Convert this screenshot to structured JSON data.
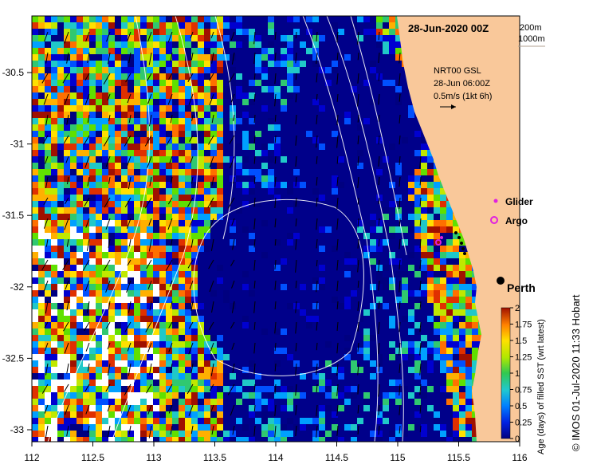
{
  "title": "28-Jun-2020 00Z",
  "depth_labels": [
    "200m",
    "1000m"
  ],
  "current_info": {
    "line1": "NRT00 GSL",
    "line2": "28-Jun 06:00Z",
    "line3": "0.5m/s (1kt 6h)"
  },
  "legend": {
    "glider": "Glider",
    "argo": "Argo"
  },
  "city": "Perth",
  "colorbar": {
    "label": "Age (days) of filled SST (wrt latest)",
    "ticks": [
      "2",
      "1.75",
      "1.5",
      "1.25",
      "1",
      "0.75",
      "0.5",
      "0.25",
      "0"
    ],
    "colors": [
      "#000080",
      "#0000d0",
      "#0050ff",
      "#00a0ff",
      "#20c8c8",
      "#30c870",
      "#60e000",
      "#c0e800",
      "#ffe000",
      "#ffb000",
      "#ff7000",
      "#e03000",
      "#a01000"
    ]
  },
  "x_axis": {
    "ticks": [
      "112",
      "112.5",
      "113",
      "113.5",
      "114",
      "114.5",
      "115",
      "115.5",
      "116"
    ]
  },
  "y_axis": {
    "ticks": [
      "-30.5",
      "-31",
      "-31.5",
      "-32",
      "-32.5",
      "-33"
    ]
  },
  "credit": "© IMOS 01-Jul-2020 11:33 Hobart",
  "colors": {
    "land": "#f9c89a",
    "deep": "#00008a",
    "vector": "#000000",
    "contour": "#ffffff",
    "glider": "#e020e0",
    "argo": "#e020e0"
  }
}
